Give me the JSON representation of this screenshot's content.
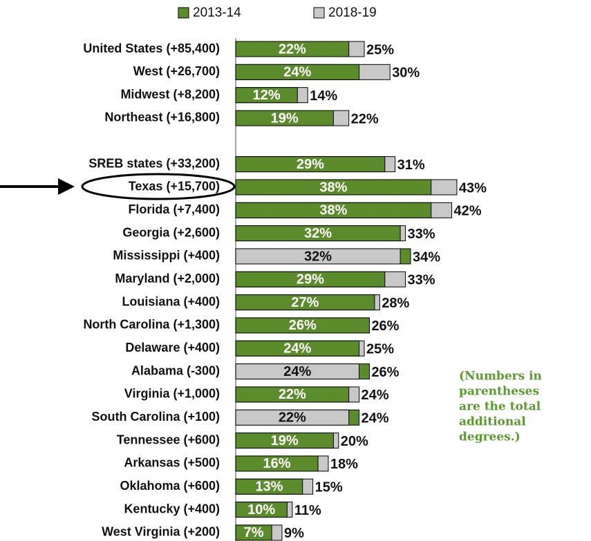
{
  "chart_data": {
    "type": "overlap_bar_h",
    "categories": [
      "United States (+85,400)",
      "West (+26,700)",
      "Midwest (+8,200)",
      "Northeast (+16,800)",
      null,
      "SREB states (+33,200)",
      "Texas (+15,700)",
      "Florida (+7,400)",
      "Georgia (+2,600)",
      "Mississippi (+400)",
      "Maryland (+2,000)",
      "Louisiana (+400)",
      "North Carolina (+1,300)",
      "Delaware (+400)",
      "Alabama (-300)",
      "Virginia (+1,000)",
      "South Carolina (+100)",
      "Tennessee (+600)",
      "Arkansas (+500)",
      "Oklahoma (+600)",
      "Kentucky (+400)",
      "West Virginia (+200)"
    ],
    "series": [
      {
        "name": "2013-14",
        "color": "#5b8c2c",
        "values": [
          22,
          24,
          12,
          19,
          null,
          29,
          38,
          38,
          32,
          34,
          29,
          27,
          26,
          24,
          26,
          22,
          24,
          19,
          16,
          13,
          10,
          7
        ],
        "value_labels": [
          "22%",
          "24%",
          "12%",
          "19%",
          null,
          "29%",
          "38%",
          "38%",
          "32%",
          "34%",
          "29%",
          "27%",
          "26%",
          "24%",
          "26%",
          "22%",
          "24%",
          "19%",
          "16%",
          "13%",
          "10%",
          "7%"
        ]
      },
      {
        "name": "2018-19",
        "color": "#c8c8c8",
        "values": [
          25,
          30,
          14,
          22,
          null,
          31,
          43,
          42,
          33,
          32,
          33,
          28,
          26,
          25,
          24,
          24,
          22,
          20,
          18,
          15,
          11,
          9
        ],
        "value_labels": [
          "25%",
          "30%",
          "14%",
          "22%",
          null,
          "31%",
          "43%",
          "42%",
          "33%",
          "32%",
          "33%",
          "28%",
          "26%",
          "25%",
          "24%",
          "24%",
          "22%",
          "20%",
          "18%",
          "15%",
          "11%",
          "9%"
        ]
      }
    ],
    "xlim": [
      0,
      50
    ],
    "annotation": [
      "(Numbers in",
      "parentheses",
      "are the total",
      "additional",
      "degrees.)"
    ]
  }
}
